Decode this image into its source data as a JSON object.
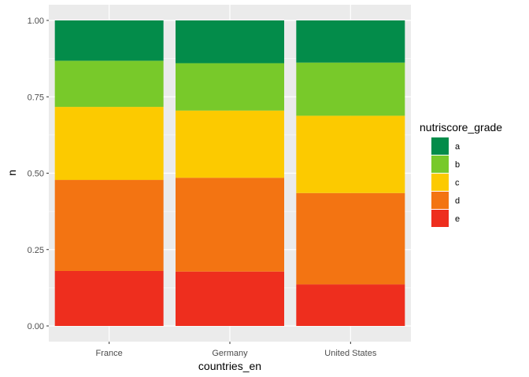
{
  "chart_data": {
    "type": "bar",
    "stacked": true,
    "categories": [
      "France",
      "Germany",
      "United States"
    ],
    "series": [
      {
        "name": "e",
        "values": [
          0.18,
          0.178,
          0.136
        ]
      },
      {
        "name": "d",
        "values": [
          0.298,
          0.307,
          0.299
        ]
      },
      {
        "name": "c",
        "values": [
          0.239,
          0.22,
          0.253
        ]
      },
      {
        "name": "b",
        "values": [
          0.151,
          0.155,
          0.174
        ]
      },
      {
        "name": "a",
        "values": [
          0.132,
          0.14,
          0.138
        ]
      }
    ],
    "colors": {
      "a": "#038C4A",
      "b": "#78C92A",
      "c": "#FCCA00",
      "d": "#F37412",
      "e": "#EE2E1E"
    },
    "xlabel": "countries_en",
    "ylabel": "n",
    "ylim": [
      0,
      1
    ],
    "yticks": [
      "0.00",
      "0.25",
      "0.50",
      "0.75",
      "1.00"
    ],
    "ytick_values": [
      0,
      0.25,
      0.5,
      0.75,
      1
    ],
    "grid": true,
    "legend": {
      "title": "nutriscore_grade",
      "placement": "right",
      "items": [
        "a",
        "b",
        "c",
        "d",
        "e"
      ]
    },
    "panel_background": "#EBEBEB"
  }
}
